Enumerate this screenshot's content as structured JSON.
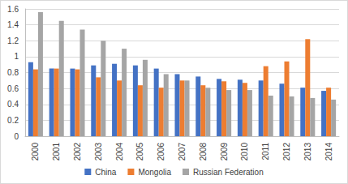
{
  "chart_data": {
    "type": "bar",
    "categories": [
      "2000",
      "2001",
      "2002",
      "2003",
      "2004",
      "2005",
      "2006",
      "2007",
      "2008",
      "2009",
      "2010",
      "2011",
      "2012",
      "2013",
      "2014"
    ],
    "series": [
      {
        "name": "China",
        "color": "#4472c4",
        "values": [
          0.93,
          0.85,
          0.85,
          0.89,
          0.91,
          0.89,
          0.85,
          0.78,
          0.75,
          0.72,
          0.71,
          0.7,
          0.66,
          0.61,
          0.57
        ]
      },
      {
        "name": "Mongolia",
        "color": "#ed7d31",
        "values": [
          0.84,
          0.85,
          0.84,
          0.74,
          0.7,
          0.64,
          0.61,
          0.7,
          0.64,
          0.69,
          0.67,
          0.88,
          0.94,
          1.22,
          0.61
        ]
      },
      {
        "name": "Russian Federation",
        "color": "#a5a5a5",
        "values": [
          1.56,
          1.45,
          1.34,
          1.2,
          1.1,
          0.96,
          0.78,
          0.7,
          0.61,
          0.58,
          0.58,
          0.51,
          0.5,
          0.48,
          0.46
        ]
      }
    ],
    "ylim": [
      0,
      1.6
    ],
    "yticks": [
      0,
      0.2,
      0.4,
      0.6,
      0.8,
      1,
      1.2,
      1.4,
      1.6
    ],
    "grid": true,
    "legend": "bottom"
  }
}
